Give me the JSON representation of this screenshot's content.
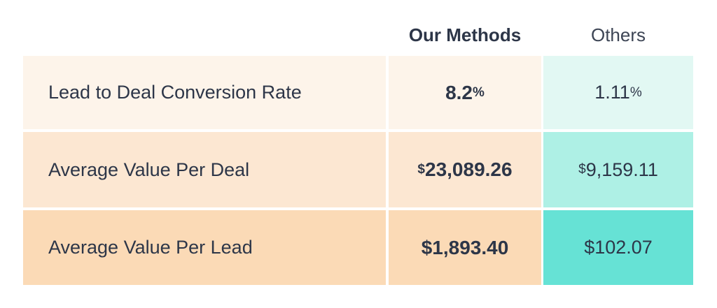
{
  "header": {
    "ours": "Our Methods",
    "others": "Others"
  },
  "rows": [
    {
      "label": "Lead to Deal Conversion Rate",
      "ours": {
        "prefix": "",
        "value": "8.2",
        "suffix": "%"
      },
      "others": {
        "prefix": "",
        "value": "1.11",
        "suffix": "%"
      }
    },
    {
      "label": "Average Value Per Deal",
      "ours": {
        "prefix": "$",
        "value": "23,089.26",
        "suffix": ""
      },
      "others": {
        "prefix": "$",
        "value": "9,159.11",
        "suffix": ""
      }
    },
    {
      "label": "Average Value Per Lead",
      "ours": {
        "prefix": "",
        "value": "$1,893.40",
        "suffix": ""
      },
      "others": {
        "prefix": "",
        "value": "$102.07",
        "suffix": ""
      }
    }
  ],
  "colors": {
    "text": "#2d3648",
    "ours_row_1": "#fdf4ea",
    "ours_row_2": "#fce7d2",
    "ours_row_3": "#fbdab6",
    "others_row_1": "#e2f8f3",
    "others_row_2": "#aef0e5",
    "others_row_3": "#66e2d5"
  }
}
